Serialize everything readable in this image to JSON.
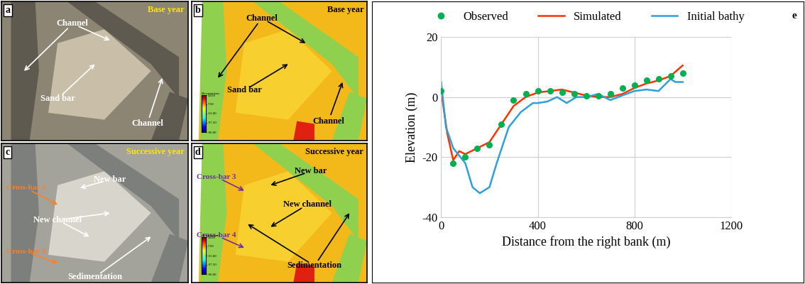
{
  "image_panels": [
    {
      "letter": "a",
      "year": "Base year",
      "kind": "satellite",
      "labels": [
        "Channel",
        "Sand bar",
        "Channel"
      ]
    },
    {
      "letter": "b",
      "year": "Base year",
      "kind": "model",
      "labels": [
        "Channel",
        "Sand bar",
        "Channel"
      ],
      "colorbar": {
        "title": "Elevation(m)",
        "range": [
          -60,
          30
        ],
        "ticks": [
          {
            "value": 30,
            "label": "30.00"
          },
          {
            "value": 7.5,
            "label": "7.50"
          },
          {
            "value": -15,
            "label": "-15.00"
          },
          {
            "value": -37.5,
            "label": "-37.50"
          },
          {
            "value": -60,
            "label": "-60.00"
          }
        ]
      }
    },
    {
      "letter": "c",
      "year": "Successive year",
      "kind": "satellite",
      "labels": [
        "Cross-bar 3",
        "New bar",
        "New channel",
        "Cross-bar 4",
        "Sedimentation"
      ]
    },
    {
      "letter": "d",
      "year": "Successive year",
      "kind": "model",
      "labels": [
        "New bar",
        "Cross-bar 3",
        "New channel",
        "Cross-bar 4",
        "Sedimentation"
      ],
      "colorbar": {
        "title": "Elevation(m)",
        "range": [
          -60,
          30
        ],
        "ticks": [
          {
            "value": 30,
            "label": "30.00"
          },
          {
            "value": 7.5,
            "label": "7.50"
          },
          {
            "value": -15,
            "label": "-15.00"
          },
          {
            "value": -37.5,
            "label": "-37.50"
          },
          {
            "value": -60,
            "label": "-60.00"
          }
        ]
      }
    }
  ],
  "chart_data": {
    "type": "line",
    "panel_letter": "e",
    "x_label": "Distance from the right bank (m)",
    "y_label": "Elevation (m)",
    "xlim": [
      0,
      1200
    ],
    "xticks": [
      0,
      400,
      800,
      1200
    ],
    "ylim": [
      -40,
      20
    ],
    "yticks": [
      -40,
      -20,
      0,
      20
    ],
    "grid": true,
    "legend": "upper center",
    "series": [
      {
        "name": "Observed",
        "type": "scatter",
        "color": "#00b050",
        "marker": "o",
        "x": [
          0,
          50,
          100,
          150,
          200,
          250,
          300,
          350,
          400,
          450,
          500,
          550,
          600,
          650,
          700,
          750,
          800,
          850,
          900,
          950,
          1000
        ],
        "values": [
          2,
          -22,
          -20,
          -17,
          -16,
          -9,
          -1,
          1,
          2,
          2,
          1.5,
          1,
          0.5,
          0.5,
          1,
          3,
          4,
          5.5,
          6,
          7,
          8
        ]
      },
      {
        "name": "Simulated",
        "type": "line",
        "color": "#ff3300",
        "x": [
          0,
          25,
          50,
          75,
          100,
          150,
          200,
          250,
          300,
          350,
          400,
          450,
          500,
          550,
          600,
          650,
          700,
          750,
          800,
          850,
          900,
          950,
          1000
        ],
        "values": [
          2,
          -12,
          -21,
          -18,
          -19,
          -17,
          -15,
          -9,
          -3,
          0,
          1.5,
          2,
          2.5,
          1.5,
          0.5,
          0,
          0,
          1,
          3,
          4.5,
          5.5,
          7,
          10.5
        ]
      },
      {
        "name": "Initial bathy",
        "type": "line",
        "color": "#2e9fd8",
        "x": [
          0,
          20,
          50,
          100,
          130,
          160,
          200,
          230,
          280,
          330,
          380,
          400,
          440,
          480,
          520,
          560,
          600,
          650,
          700,
          750,
          800,
          850,
          900,
          950,
          970,
          1000
        ],
        "values": [
          5,
          -10,
          -17,
          -22,
          -30,
          -32,
          -30,
          -22,
          -10,
          -5,
          -2,
          -2,
          -1.5,
          0,
          -2,
          0,
          0,
          1,
          -1,
          0.5,
          2,
          2.5,
          2,
          6,
          5,
          5
        ]
      }
    ]
  }
}
